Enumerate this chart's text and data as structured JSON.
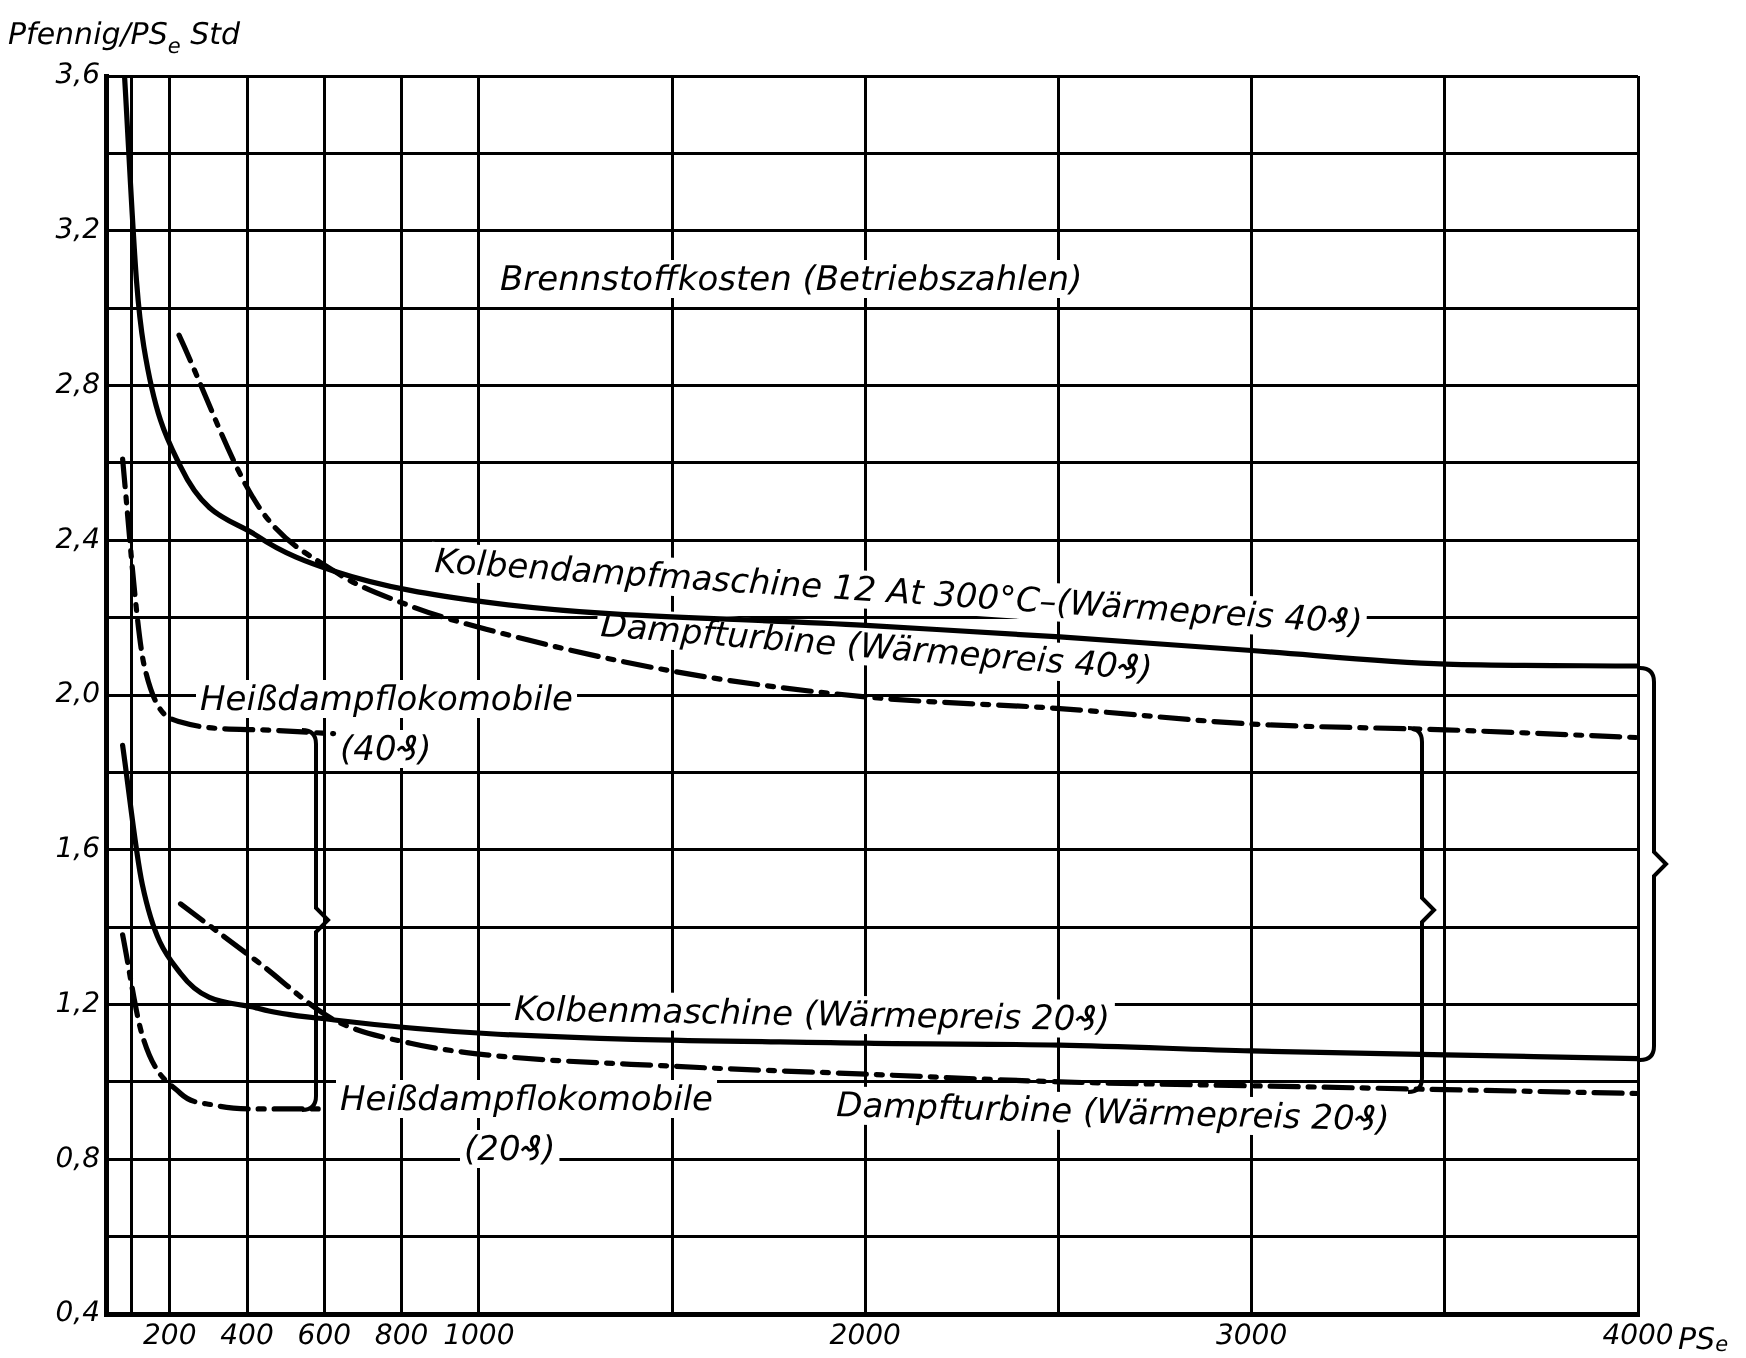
{
  "chart_data": {
    "type": "line",
    "title": "Brennstoffkosten (Betriebszahlen)",
    "xlabel": "PS$_{e}$",
    "ylabel": "Pfennig/PS$_{e}$ Std",
    "xlim": [
      35,
      4000
    ],
    "ylim": [
      0.4,
      3.6
    ],
    "xticks": [
      {
        "value": 100,
        "label": null
      },
      200,
      400,
      600,
      800,
      1000,
      {
        "value": 1500,
        "label": null
      },
      2000,
      {
        "value": 2500,
        "label": null
      },
      3000,
      {
        "value": 3500,
        "label": null
      },
      4000
    ],
    "yticks": [
      {
        "value": 0.4,
        "label": "0,4"
      },
      {
        "value": 0.6,
        "label": null
      },
      {
        "value": 0.8,
        "label": "0,8"
      },
      {
        "value": 1.0,
        "label": null
      },
      {
        "value": 1.2,
        "label": "1,2"
      },
      {
        "value": 1.4,
        "label": null
      },
      {
        "value": 1.6,
        "label": "1,6"
      },
      {
        "value": 1.8,
        "label": null
      },
      {
        "value": 2.0,
        "label": "2,0"
      },
      {
        "value": 2.2,
        "label": null
      },
      {
        "value": 2.4,
        "label": "2,4"
      },
      {
        "value": 2.6,
        "label": null
      },
      {
        "value": 2.8,
        "label": "2,8"
      },
      {
        "value": 3.0,
        "label": null
      },
      {
        "value": 3.2,
        "label": "3,2"
      },
      {
        "value": 3.4,
        "label": null
      },
      {
        "value": 3.6,
        "label": "3,6"
      }
    ],
    "grid": true,
    "legend": false,
    "marker": "none",
    "series": [
      {
        "name": "Kolbendampfmaschine 12 At 300°C–(Wärmepreis 40₰)",
        "color": "#000000",
        "line_style": "solid",
        "x": [
          83,
          114,
          133,
          228,
          428,
          626,
          1019,
          2002,
          2504,
          3000,
          3502,
          3999
        ],
        "values": [
          3.6,
          3.07,
          2.9,
          2.59,
          2.41,
          2.32,
          2.24,
          2.18,
          2.15,
          2.115,
          2.08,
          2.075
        ]
      },
      {
        "name": "Dampfturbine (Wärmepreis 40₰)",
        "color": "#000000",
        "line_style": "dashed",
        "x": [
          224,
          428,
          626,
          823,
          1019,
          1510,
          2002,
          2504,
          3000,
          3502,
          3999
        ],
        "values": [
          2.93,
          2.49,
          2.32,
          2.23,
          2.17,
          2.06,
          1.995,
          1.965,
          1.925,
          1.91,
          1.89
        ]
      },
      {
        "name": "Heißdampflokomobile (40₰)",
        "color": "#000000",
        "line_style": "dashed",
        "x": [
          78,
          115,
          133,
          228,
          428,
          624
        ],
        "values": [
          2.61,
          2.21,
          2.08,
          1.93,
          1.91,
          1.9
        ]
      },
      {
        "name": "Kolbenmaschine (Wärmepreis 20₰)",
        "color": "#000000",
        "line_style": "solid",
        "x": [
          78,
          129,
          228,
          428,
          626,
          1019,
          2002,
          2504,
          3000,
          3502,
          3999
        ],
        "values": [
          1.87,
          1.51,
          1.28,
          1.19,
          1.16,
          1.125,
          1.1,
          1.095,
          1.08,
          1.07,
          1.06
        ]
      },
      {
        "name": "Dampfturbine (Wärmepreis 20₰)",
        "color": "#000000",
        "line_style": "dashed",
        "x": [
          228,
          428,
          626,
          823,
          1019,
          1510,
          2002,
          2504,
          3000,
          3502,
          3999
        ],
        "values": [
          1.46,
          1.31,
          1.16,
          1.1,
          1.07,
          1.04,
          1.02,
          1.0,
          0.99,
          0.98,
          0.97
        ]
      },
      {
        "name": "Heißdampflokomobile (20₰)",
        "color": "#000000",
        "line_style": "dashed",
        "x": [
          78,
          129,
          228,
          314,
          428,
          606
        ],
        "values": [
          1.38,
          1.12,
          0.97,
          0.94,
          0.93,
          0.93
        ]
      }
    ]
  }
}
